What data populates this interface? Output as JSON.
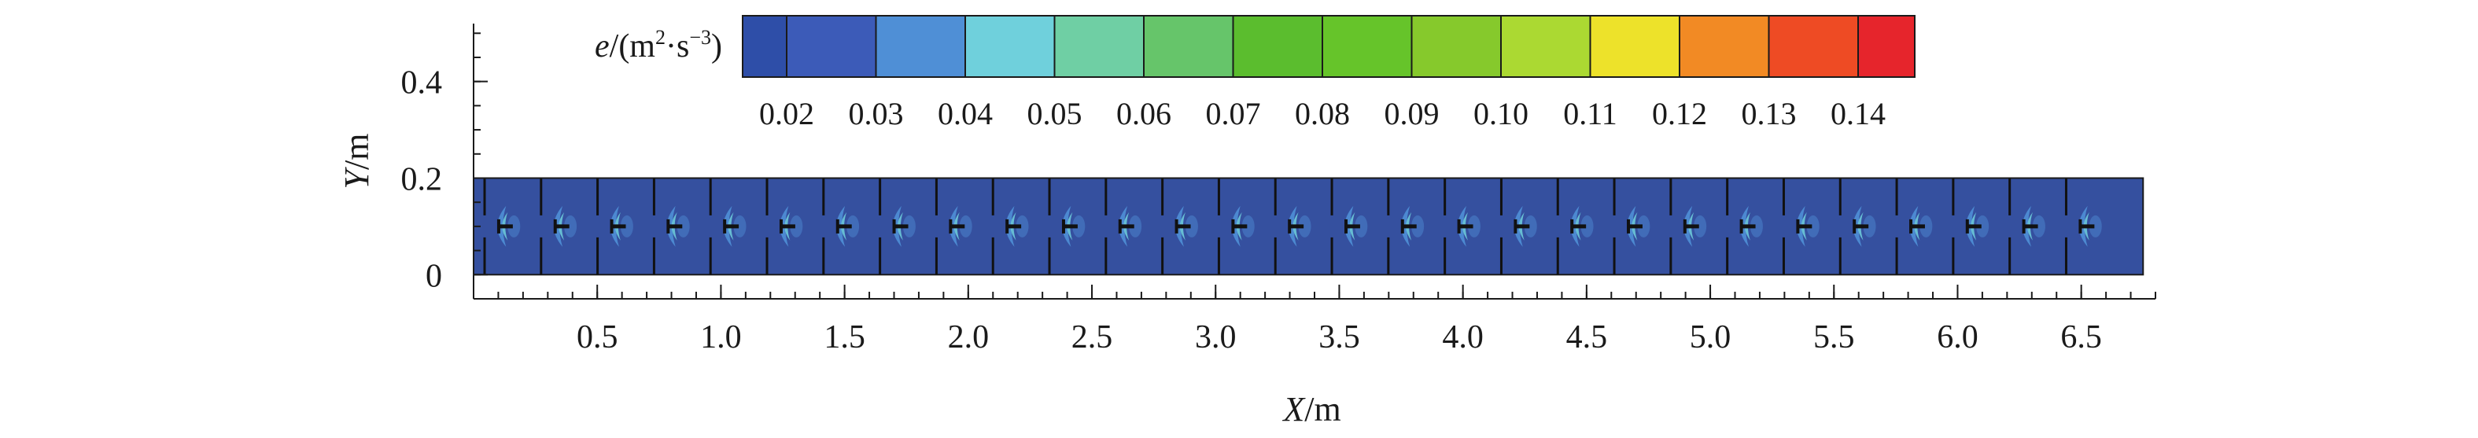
{
  "chart_data": {
    "type": "heatmap",
    "title": "",
    "xlabel": {
      "var": "X",
      "unit": "/m"
    },
    "ylabel": {
      "var": "Y",
      "unit": "/m"
    },
    "xlim": [
      0,
      6.8
    ],
    "ylim": [
      -0.05,
      0.52
    ],
    "x_ticks": [
      "0.5",
      "1.0",
      "1.5",
      "2.0",
      "2.5",
      "3.0",
      "3.5",
      "4.0",
      "4.5",
      "5.0",
      "5.5",
      "6.0",
      "6.5"
    ],
    "x_tick_values": [
      0.5,
      1.0,
      1.5,
      2.0,
      2.5,
      3.0,
      3.5,
      4.0,
      4.5,
      5.0,
      5.5,
      6.0,
      6.5
    ],
    "y_ticks": [
      "0",
      "0.2",
      "0.4"
    ],
    "y_tick_values": [
      0,
      0.2,
      0.4
    ],
    "domain": {
      "x": [
        0,
        6.75
      ],
      "y": [
        0,
        0.2
      ]
    },
    "baffle_count": 29,
    "colorbar": {
      "label": {
        "var": "e",
        "prefix": "/(m",
        "sup1": "2",
        "mid": "·s",
        "sup2": "−3",
        "suffix": ")"
      },
      "tick_labels": [
        "0.02",
        "0.03",
        "0.04",
        "0.05",
        "0.06",
        "0.07",
        "0.08",
        "0.09",
        "0.10",
        "0.11",
        "0.12",
        "0.13",
        "0.14"
      ],
      "colors": [
        "#2e4ea8",
        "#3c5bb8",
        "#4f8fd6",
        "#6fd0dc",
        "#6fcfa4",
        "#66c56a",
        "#5bbd2e",
        "#66c42a",
        "#86c92c",
        "#abd932",
        "#ede22a",
        "#f28a24",
        "#ee4b24",
        "#e6252c"
      ]
    },
    "field_background_color": "#35509f",
    "highlight_colors": [
      "#4f8fd6",
      "#6fd0dc"
    ]
  }
}
